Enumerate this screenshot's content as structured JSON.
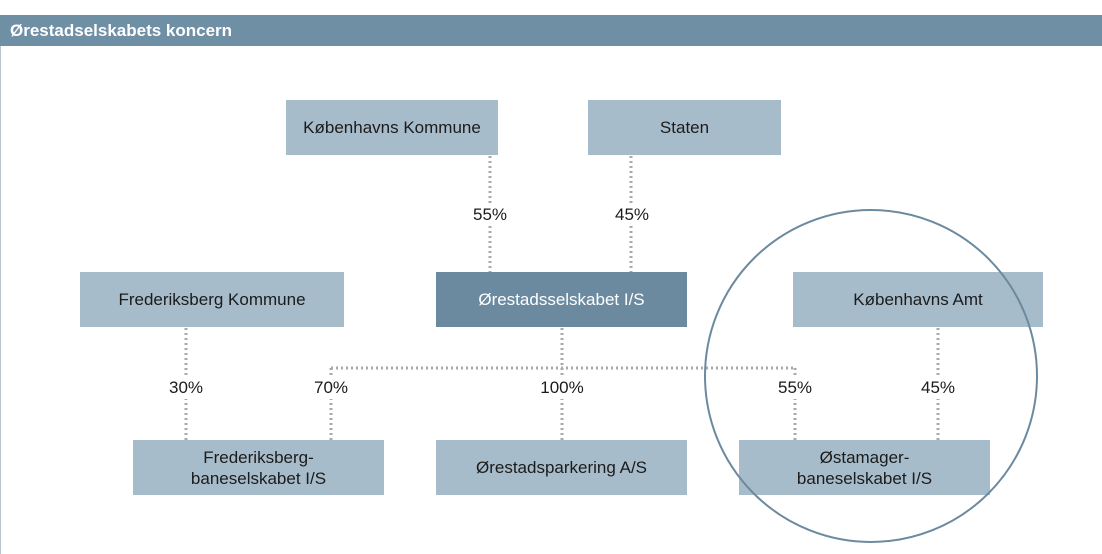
{
  "header": {
    "title": "Ørestadselskabets koncern"
  },
  "nodes": [
    {
      "lines": [
        "Københavns Kommune"
      ]
    },
    {
      "lines": [
        "Staten"
      ]
    },
    {
      "lines": [
        "Frederiksberg Kommune"
      ]
    },
    {
      "lines": [
        "Ørestadsselskabet I/S"
      ]
    },
    {
      "lines": [
        "Københavns Amt"
      ]
    },
    {
      "lines": [
        "Frederiksberg-",
        "baneselskabet I/S"
      ]
    },
    {
      "lines": [
        "Ørestadsparkering A/S"
      ]
    },
    {
      "lines": [
        "Østamager-",
        "baneselskabet I/S"
      ]
    }
  ],
  "edges": [
    {
      "label": "55%"
    },
    {
      "label": "45%"
    },
    {
      "label": "30%"
    },
    {
      "label": "70%"
    },
    {
      "label": "100%"
    },
    {
      "label": "55%"
    },
    {
      "label": "45%"
    }
  ]
}
